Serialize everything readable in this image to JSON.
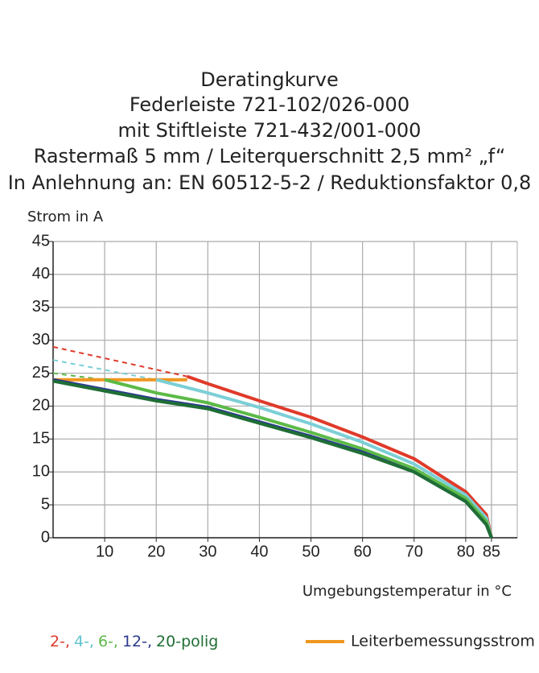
{
  "chart_data": {
    "type": "line",
    "title": [
      "Deratingkurve",
      "Federleiste 721-102/026-000",
      "mit Stiftleiste 721-432/001-000",
      "Rastermaß 5 mm / Leiterquerschnitt 2,5 mm² „f“",
      "In Anlehnung an: EN 60512-5-2 / Reduktionsfaktor 0,8"
    ],
    "ylabel": "Strom in A",
    "xlabel": "Umgebungstemperatur in °C",
    "xlim": [
      0,
      90
    ],
    "xticks": [
      10,
      20,
      30,
      40,
      50,
      60,
      70,
      80,
      85
    ],
    "ylim": [
      0,
      45
    ],
    "yticks": [
      0,
      5,
      10,
      15,
      20,
      25,
      30,
      35,
      40,
      45
    ],
    "grid": true,
    "series": [
      {
        "color": "#e03a2a",
        "dashed": true,
        "x": [
          0,
          26
        ],
        "values": [
          29,
          24.5
        ]
      },
      {
        "color": "#7ccfd6",
        "dashed": true,
        "x": [
          0,
          20
        ],
        "values": [
          27,
          24
        ]
      },
      {
        "color": "#5cba47",
        "dashed": true,
        "x": [
          0,
          10
        ],
        "values": [
          25,
          24
        ]
      },
      {
        "color": "#f0961e",
        "x": [
          0,
          26
        ],
        "values": [
          24,
          24
        ]
      },
      {
        "color": "#e03a2a",
        "x": [
          26,
          30,
          40,
          50,
          60,
          70,
          80,
          84,
          85
        ],
        "values": [
          24.5,
          23.4,
          20.8,
          18.3,
          15.3,
          12,
          7,
          3.5,
          0
        ]
      },
      {
        "color": "#7ccfd6",
        "x": [
          20,
          30,
          40,
          50,
          60,
          70,
          80,
          84,
          85
        ],
        "values": [
          24,
          22,
          19.8,
          17.3,
          14.5,
          11.2,
          6.5,
          3,
          0
        ]
      },
      {
        "color": "#5cba47",
        "x": [
          10,
          20,
          30,
          40,
          50,
          60,
          70,
          80,
          84,
          85
        ],
        "values": [
          24,
          22,
          20.5,
          18.3,
          16,
          13.5,
          10.5,
          6,
          2.5,
          0
        ]
      },
      {
        "color": "#2b3a8f",
        "x": [
          0,
          10,
          20,
          30,
          40,
          50,
          60,
          70,
          80,
          84,
          85
        ],
        "values": [
          24,
          22.5,
          21,
          19.8,
          17.6,
          15.4,
          13,
          10,
          5.5,
          2,
          0
        ]
      },
      {
        "color": "#1f6e35",
        "x": [
          0,
          10,
          20,
          30,
          40,
          50,
          60,
          70,
          80,
          84,
          85
        ],
        "values": [
          23.8,
          22.3,
          20.8,
          19.6,
          17.4,
          15.2,
          12.8,
          10,
          5.5,
          2,
          0
        ]
      }
    ],
    "legend": [
      {
        "text": "2-,",
        "color": "#e03a2a"
      },
      {
        "text": "4-,",
        "color": "#5fc3cc"
      },
      {
        "text": "6-,",
        "color": "#5cba47"
      },
      {
        "text": "12-,",
        "color": "#2b3a8f"
      },
      {
        "text": "20-polig",
        "color": "#1f6e35"
      }
    ],
    "legend_line": {
      "text": "Leiterbemessungsstrom",
      "color": "#f0961e"
    }
  }
}
